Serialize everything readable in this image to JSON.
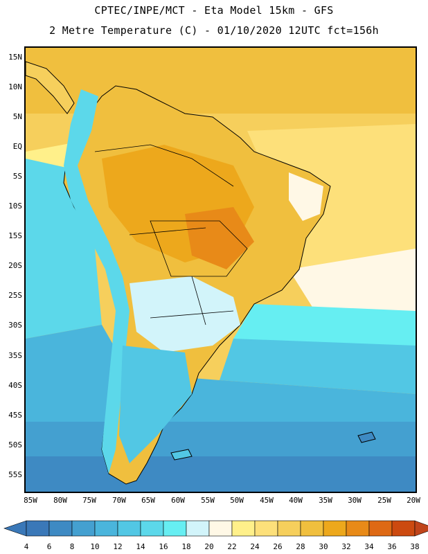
{
  "header": {
    "title_line1": "CPTEC/INPE/MCT -  Eta Model 15km - GFS",
    "title_line2": "2 Metre Temperature (C) - 01/10/2020 12UTC fct=156h"
  },
  "map": {
    "lat_labels": [
      "15N",
      "10N",
      "5N",
      "EQ",
      "5S",
      "10S",
      "15S",
      "20S",
      "25S",
      "30S",
      "35S",
      "40S",
      "45S",
      "50S",
      "55S"
    ],
    "lon_labels": [
      "85W",
      "80W",
      "75W",
      "70W",
      "65W",
      "60W",
      "55W",
      "50W",
      "45W",
      "40W",
      "35W",
      "30W",
      "25W",
      "20W"
    ]
  },
  "colorbar": {
    "labels": [
      "4",
      "6",
      "8",
      "10",
      "12",
      "14",
      "16",
      "18",
      "20",
      "22",
      "24",
      "26",
      "28",
      "30",
      "32",
      "34",
      "36",
      "38"
    ],
    "low_color": "#3a78b8",
    "high_color": "#c0441a",
    "colors": [
      "#3a78b8",
      "#3e8ac3",
      "#44a0d0",
      "#4ab5dc",
      "#52c7e4",
      "#5cd8ea",
      "#66eef2",
      "#d2f4fa",
      "#fff8e6",
      "#fff08a",
      "#fde07a",
      "#f6cf5c",
      "#f0bf3e",
      "#eda81c",
      "#e88a18",
      "#de6914",
      "#cc4a10",
      "#c0441a"
    ]
  }
}
